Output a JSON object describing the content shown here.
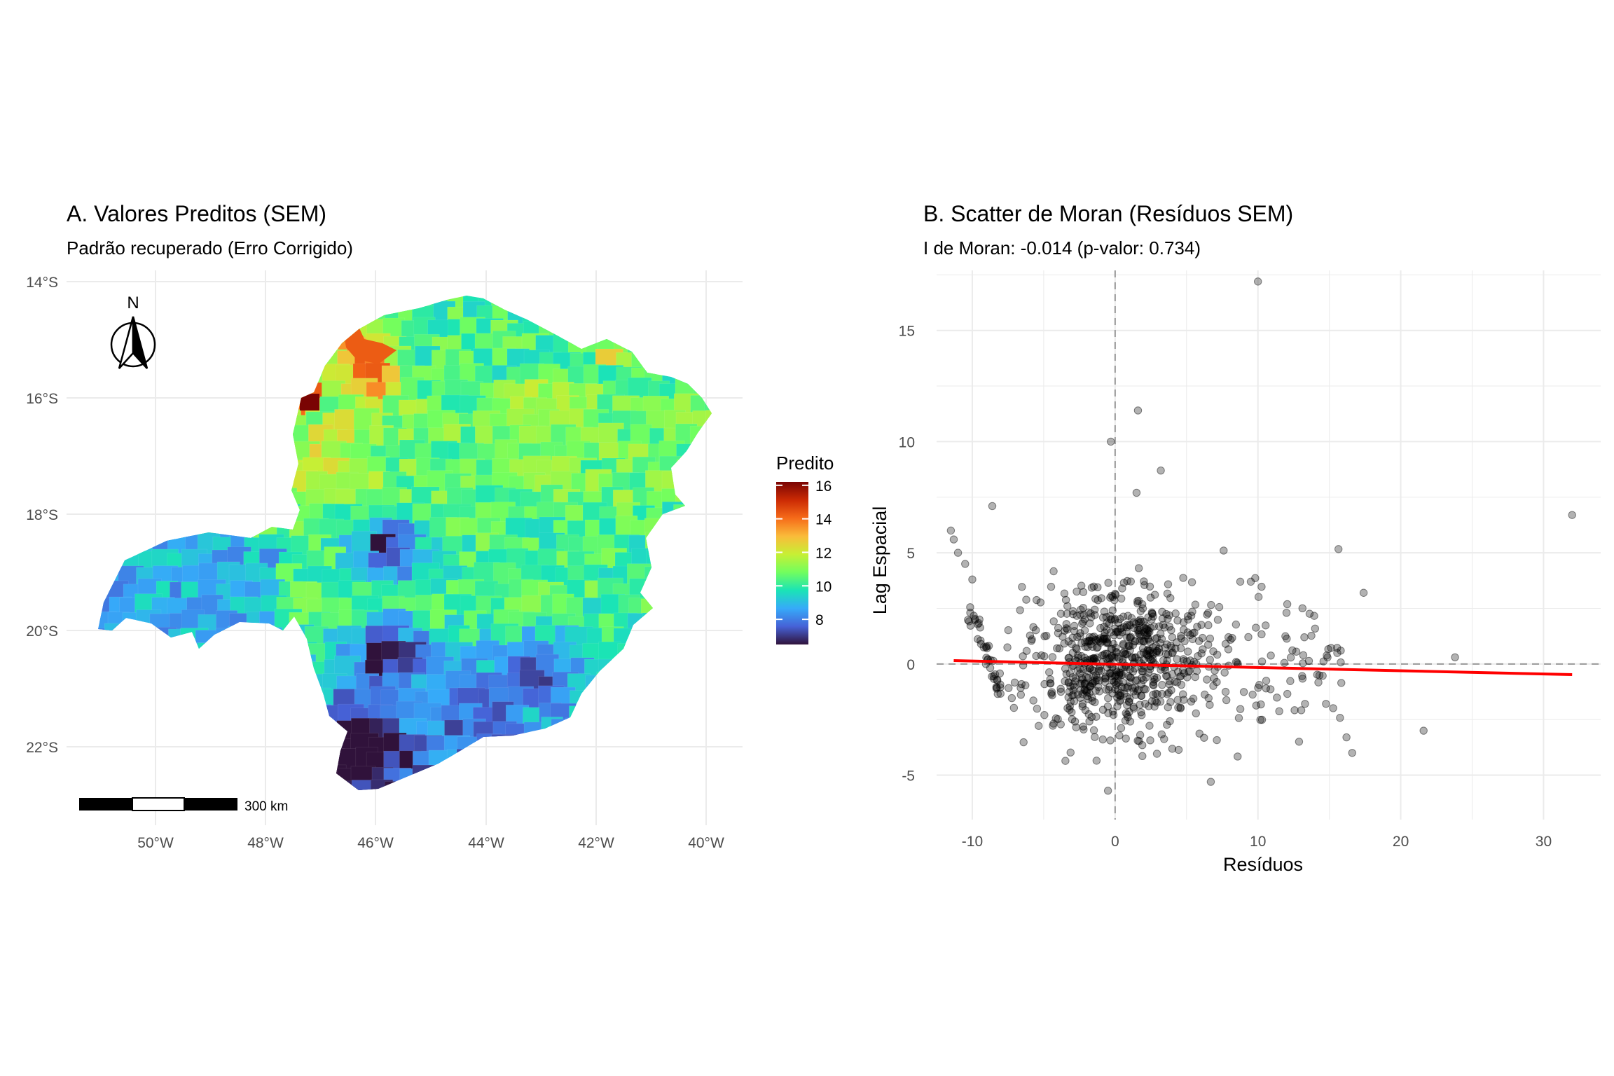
{
  "panel_a": {
    "title": "A. Valores Preditos (SEM)",
    "subtitle": "Padrão recuperado (Erro Corrigido)",
    "x_ticks": [
      "50°W",
      "48°W",
      "46°W",
      "44°W",
      "42°W",
      "40°W"
    ],
    "y_ticks": [
      "14°S",
      "16°S",
      "18°S",
      "20°S",
      "22°S"
    ],
    "north_label": "N",
    "scalebar_label": "300 km",
    "legend": {
      "title": "Predito",
      "ticks": [
        "16",
        "14",
        "12",
        "10",
        "8"
      ],
      "tick_values": [
        16,
        14,
        12,
        10,
        8
      ],
      "min": 6.5,
      "max": 16.2,
      "colors": [
        "#30123b",
        "#4662d7",
        "#36aaf9",
        "#1ae4b6",
        "#72fe5e",
        "#c7ef34",
        "#fabb3a",
        "#f66b19",
        "#cb2a04",
        "#7a0403"
      ]
    }
  },
  "panel_b": {
    "title": "B. Scatter de Moran (Resíduos SEM)",
    "subtitle": "I de Moran: -0.014 (p-valor: 0.734)",
    "chart_data": {
      "type": "scatter",
      "xlabel": "Resíduos",
      "ylabel": "Lag Espacial",
      "xlim": [
        -12.5,
        34
      ],
      "ylim": [
        -7,
        17.7
      ],
      "x_ticks": [
        -10,
        0,
        10,
        20,
        30
      ],
      "x_tick_labels": [
        "-10",
        "0",
        "10",
        "20",
        "30"
      ],
      "y_ticks": [
        -5,
        0,
        5,
        10,
        15
      ],
      "y_tick_labels": [
        "-5",
        "0",
        "5",
        "10",
        "15"
      ],
      "grid": true,
      "point_color": "#000000",
      "line_color": "#ff0000",
      "fit_line": {
        "x": [
          -11.3,
          32.0
        ],
        "y": [
          0.15,
          -0.48
        ]
      },
      "reference_lines": {
        "x": 0,
        "y": 0
      },
      "notable_points": [
        {
          "x": 10.0,
          "y": 17.2
        },
        {
          "x": 1.6,
          "y": 11.4
        },
        {
          "x": -0.3,
          "y": 10.0
        },
        {
          "x": 3.2,
          "y": 8.7
        },
        {
          "x": 1.5,
          "y": 7.7
        },
        {
          "x": -8.6,
          "y": 7.1
        },
        {
          "x": 32.0,
          "y": 6.7
        },
        {
          "x": 17.4,
          "y": 3.2
        },
        {
          "x": 23.8,
          "y": 0.3
        },
        {
          "x": 21.6,
          "y": -3.0
        },
        {
          "x": 6.7,
          "y": -5.3
        },
        {
          "x": -11.5,
          "y": 6.0
        },
        {
          "x": -11.3,
          "y": 5.6
        },
        {
          "x": -11.0,
          "y": 5.0
        },
        {
          "x": -10.5,
          "y": 4.5
        },
        {
          "x": -10.0,
          "y": 3.8
        },
        {
          "x": -9.5,
          "y": 2.0
        },
        {
          "x": 16.2,
          "y": -3.3
        },
        {
          "x": 16.6,
          "y": -4.0
        },
        {
          "x": 15.8,
          "y": 0.6
        },
        {
          "x": 12.0,
          "y": 2.3
        },
        {
          "x": -0.5,
          "y": -5.7
        },
        {
          "x": 9.5,
          "y": 3.7
        },
        {
          "x": 7.6,
          "y": 5.1
        }
      ]
    }
  }
}
